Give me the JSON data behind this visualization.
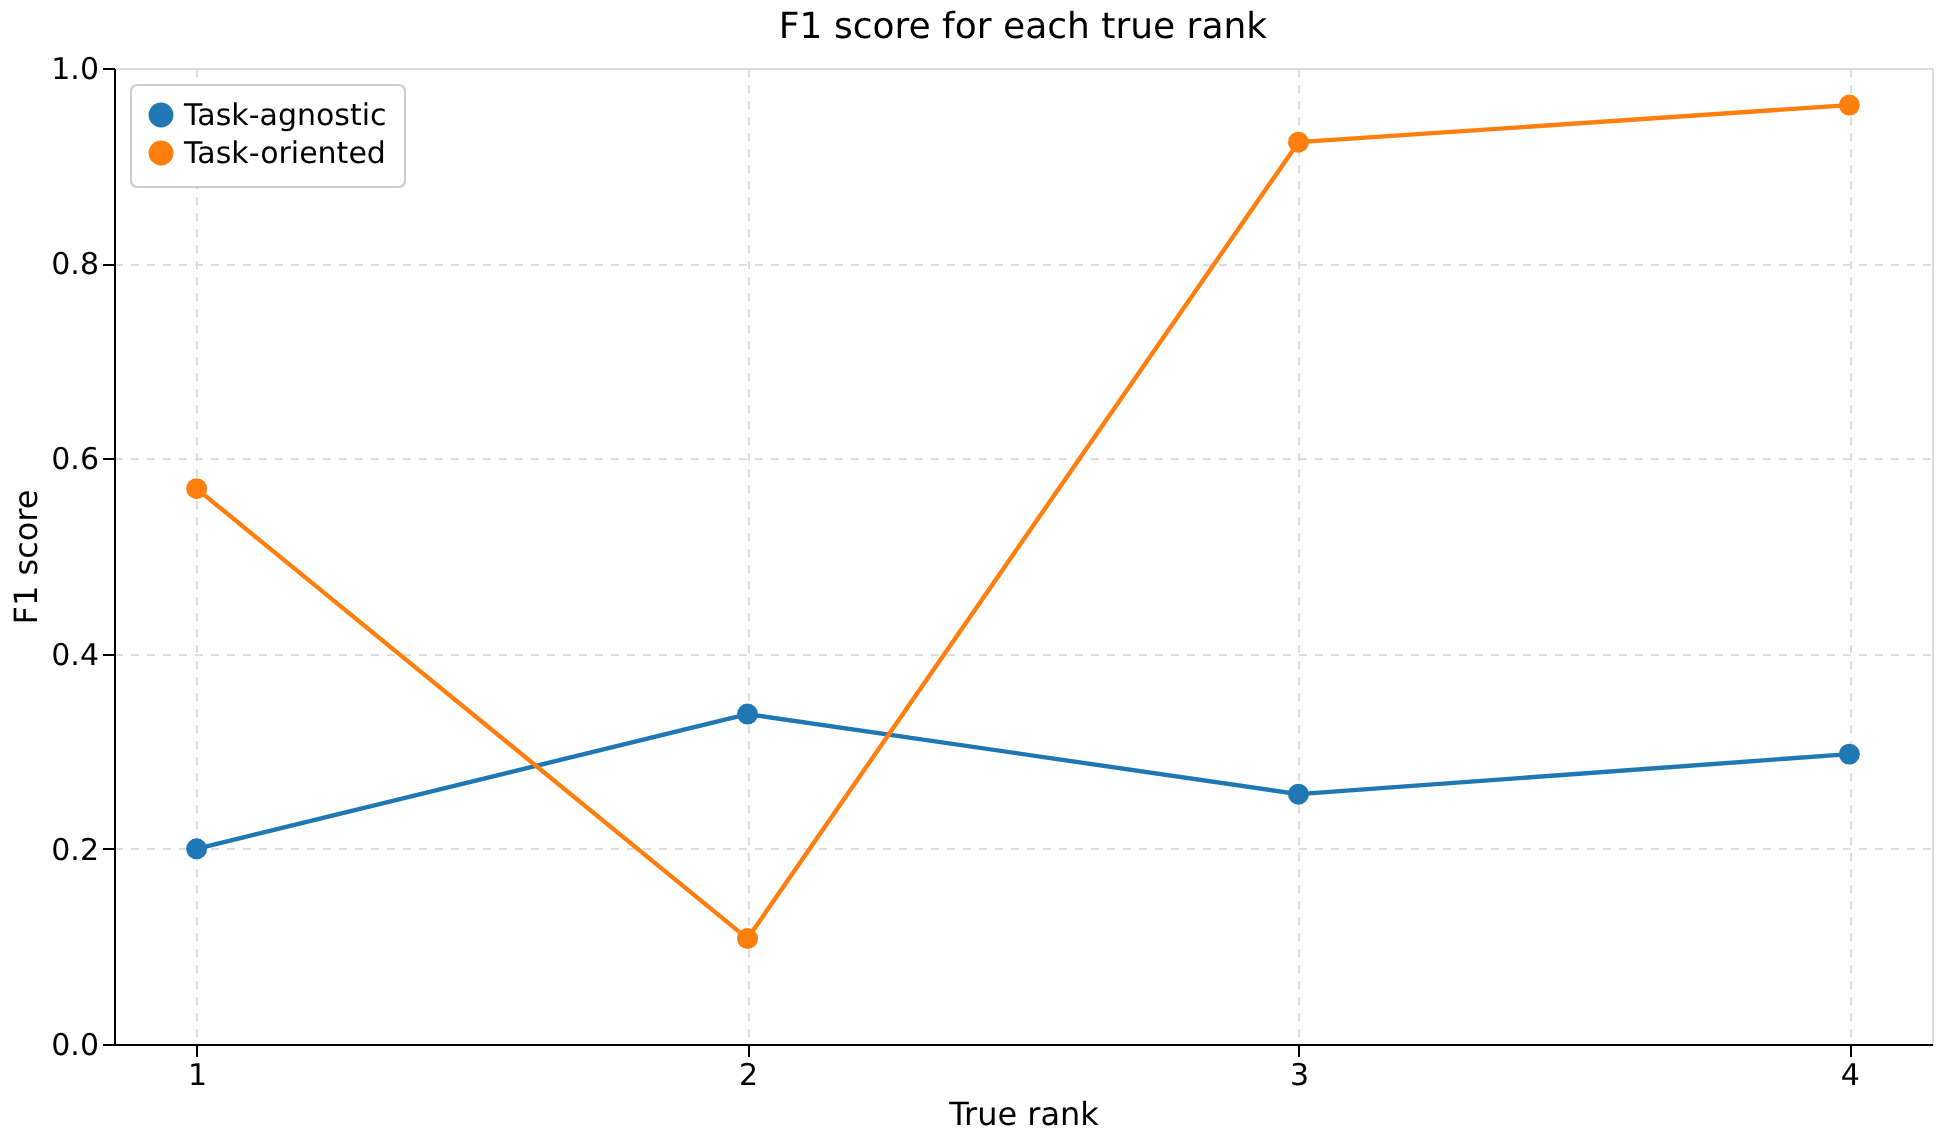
{
  "chart_data": {
    "type": "line",
    "title": "F1 score for each true rank",
    "xlabel": "True rank",
    "ylabel": "F1 score",
    "x": [
      1,
      2,
      3,
      4
    ],
    "series": [
      {
        "name": "Task-agnostic",
        "color": "#1f77b4",
        "values": [
          0.2,
          0.338,
          0.256,
          0.297
        ]
      },
      {
        "name": "Task-oriented",
        "color": "#ff7f0e",
        "values": [
          0.569,
          0.108,
          0.924,
          0.962
        ]
      }
    ],
    "xlim": [
      0.85,
      4.15
    ],
    "xticks": [
      1,
      2,
      3,
      4
    ],
    "ylim": [
      0.0,
      1.0
    ],
    "yticks": [
      {
        "value": 0,
        "label": "0.0"
      },
      {
        "value": 0.2,
        "label": "0.2"
      },
      {
        "value": 0.4,
        "label": "0.4"
      },
      {
        "value": 0.6,
        "label": "0.6"
      },
      {
        "value": 0.8,
        "label": "0.8"
      },
      {
        "value": 1.0,
        "label": "1.0"
      }
    ],
    "grid": true,
    "legend": "top left",
    "marker": "circle",
    "line_style": "solid"
  }
}
